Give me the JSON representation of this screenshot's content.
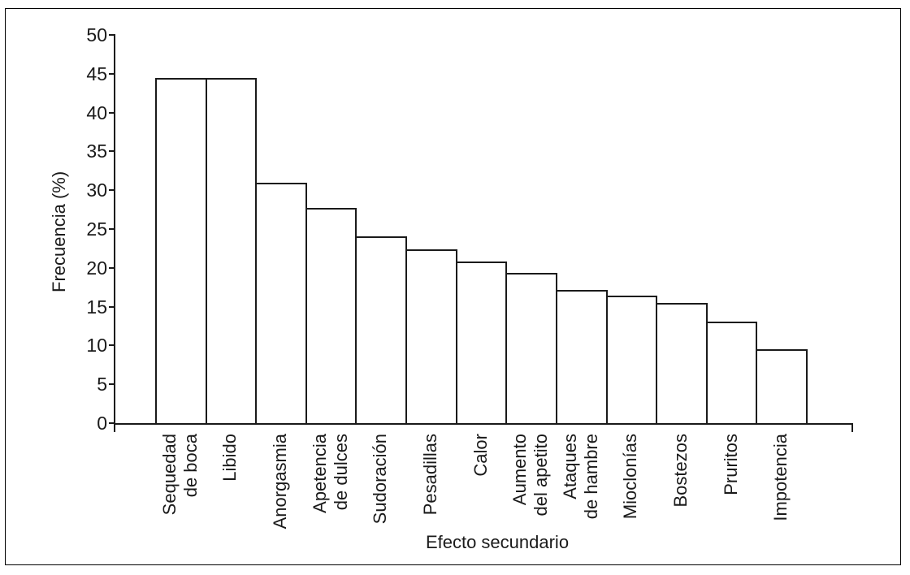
{
  "figure": {
    "background": "#ffffff",
    "border_color": "#000000",
    "line_color": "#1a1a1a",
    "bar_fill": "#ffffff"
  },
  "chart_data": {
    "type": "bar",
    "title": "",
    "xlabel": "Efecto secundario",
    "ylabel": "Frecuencia (%)",
    "ylim": [
      0,
      50
    ],
    "yticks": [
      0,
      5,
      10,
      15,
      20,
      25,
      30,
      35,
      40,
      45,
      50
    ],
    "grid": false,
    "legend": "none",
    "bar_style": "adjacent-outline-white",
    "categories": [
      "Sequedad\nde boca",
      "Libido",
      "Anorgasmia",
      "Apetencia\nde dulces",
      "Sudoración",
      "Pesadillas",
      "Calor",
      "Aumento\ndel apetito",
      "Ataques\nde hambre",
      "Mioclonías",
      "Bostezos",
      "Pruritos",
      "Impotencia"
    ],
    "values": [
      44.5,
      44.5,
      31.0,
      27.7,
      24.1,
      22.4,
      20.8,
      19.4,
      17.2,
      16.4,
      15.5,
      13.1,
      9.5
    ]
  }
}
